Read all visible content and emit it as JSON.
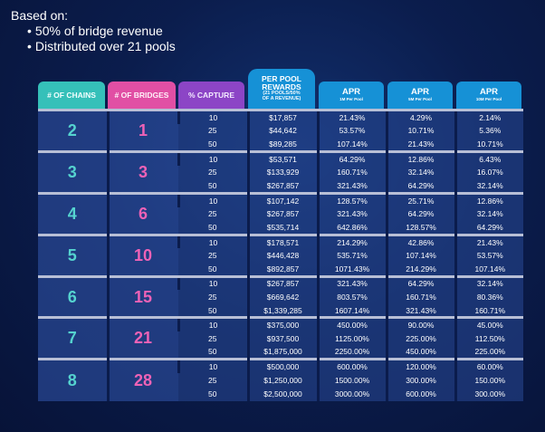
{
  "intro": {
    "title": "Based on:",
    "bullets": [
      "50% of bridge revenue",
      "Distributed over 21 pools"
    ]
  },
  "headers": {
    "chains": "# OF CHAINS",
    "bridges": "# OF BRIDGES",
    "capture": "% CAPTURE",
    "reward_line1": "PER POOL",
    "reward_line2": "REWARDS",
    "reward_sub1": "(21 POOLS/50%",
    "reward_sub2": "OF A REVENUE)",
    "apr1": "APR",
    "apr1_sub": "1M Per Pool",
    "apr5": "APR",
    "apr5_sub": "5M Per Pool",
    "apr10": "APR",
    "apr10_sub": "10M Per Pool"
  },
  "groups": [
    {
      "chains": "2",
      "bridges": "1",
      "rows": [
        {
          "capture": "10",
          "reward": "$17,857",
          "apr1": "21.43%",
          "apr5": "4.29%",
          "apr10": "2.14%"
        },
        {
          "capture": "25",
          "reward": "$44,642",
          "apr1": "53.57%",
          "apr5": "10.71%",
          "apr10": "5.36%"
        },
        {
          "capture": "50",
          "reward": "$89,285",
          "apr1": "107.14%",
          "apr5": "21.43%",
          "apr10": "10.71%"
        }
      ]
    },
    {
      "chains": "3",
      "bridges": "3",
      "rows": [
        {
          "capture": "10",
          "reward": "$53,571",
          "apr1": "64.29%",
          "apr5": "12.86%",
          "apr10": "6.43%"
        },
        {
          "capture": "25",
          "reward": "$133,929",
          "apr1": "160.71%",
          "apr5": "32.14%",
          "apr10": "16.07%"
        },
        {
          "capture": "50",
          "reward": "$267,857",
          "apr1": "321.43%",
          "apr5": "64.29%",
          "apr10": "32.14%"
        }
      ]
    },
    {
      "chains": "4",
      "bridges": "6",
      "rows": [
        {
          "capture": "10",
          "reward": "$107,142",
          "apr1": "128.57%",
          "apr5": "25.71%",
          "apr10": "12.86%"
        },
        {
          "capture": "25",
          "reward": "$267,857",
          "apr1": "321.43%",
          "apr5": "64.29%",
          "apr10": "32.14%"
        },
        {
          "capture": "50",
          "reward": "$535,714",
          "apr1": "642.86%",
          "apr5": "128.57%",
          "apr10": "64.29%"
        }
      ]
    },
    {
      "chains": "5",
      "bridges": "10",
      "rows": [
        {
          "capture": "10",
          "reward": "$178,571",
          "apr1": "214.29%",
          "apr5": "42.86%",
          "apr10": "21.43%"
        },
        {
          "capture": "25",
          "reward": "$446,428",
          "apr1": "535.71%",
          "apr5": "107.14%",
          "apr10": "53.57%"
        },
        {
          "capture": "50",
          "reward": "$892,857",
          "apr1": "1071.43%",
          "apr5": "214.29%",
          "apr10": "107.14%"
        }
      ]
    },
    {
      "chains": "6",
      "bridges": "15",
      "rows": [
        {
          "capture": "10",
          "reward": "$267,857",
          "apr1": "321.43%",
          "apr5": "64.29%",
          "apr10": "32.14%"
        },
        {
          "capture": "25",
          "reward": "$669,642",
          "apr1": "803.57%",
          "apr5": "160.71%",
          "apr10": "80.36%"
        },
        {
          "capture": "50",
          "reward": "$1,339,285",
          "apr1": "1607.14%",
          "apr5": "321.43%",
          "apr10": "160.71%"
        }
      ]
    },
    {
      "chains": "7",
      "bridges": "21",
      "rows": [
        {
          "capture": "10",
          "reward": "$375,000",
          "apr1": "450.00%",
          "apr5": "90.00%",
          "apr10": "45.00%"
        },
        {
          "capture": "25",
          "reward": "$937,500",
          "apr1": "1125.00%",
          "apr5": "225.00%",
          "apr10": "112.50%"
        },
        {
          "capture": "50",
          "reward": "$1,875,000",
          "apr1": "2250.00%",
          "apr5": "450.00%",
          "apr10": "225.00%"
        }
      ]
    },
    {
      "chains": "8",
      "bridges": "28",
      "rows": [
        {
          "capture": "10",
          "reward": "$500,000",
          "apr1": "600.00%",
          "apr5": "120.00%",
          "apr10": "60.00%"
        },
        {
          "capture": "25",
          "reward": "$1,250,000",
          "apr1": "1500.00%",
          "apr5": "300.00%",
          "apr10": "150.00%"
        },
        {
          "capture": "50",
          "reward": "$2,500,000",
          "apr1": "3000.00%",
          "apr5": "600.00%",
          "apr10": "300.00%"
        }
      ]
    }
  ]
}
